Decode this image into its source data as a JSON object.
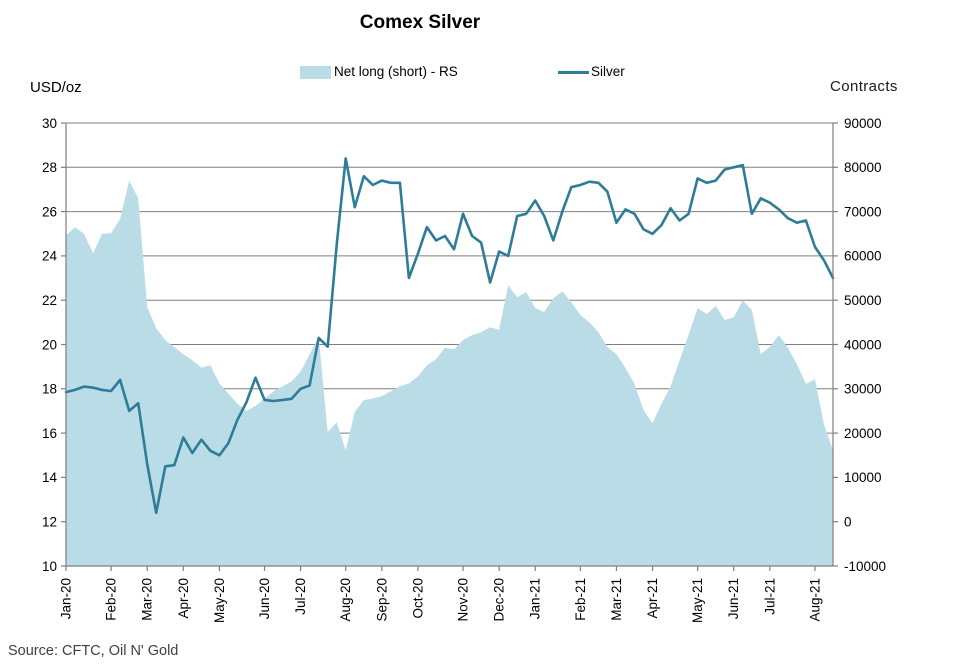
{
  "header": {
    "title": "Comex Silver"
  },
  "legend": [
    {
      "label": "Net long (short) - RS",
      "swatch": "area",
      "color": "#BADCE7"
    },
    {
      "label": "Silver",
      "swatch": "line",
      "color": "#2D7D98"
    }
  ],
  "axes": {
    "left_title": "USD/oz",
    "right_title": "Contracts"
  },
  "footer": {
    "source": "Source: CFTC, Oil N' Gold"
  },
  "colors": {
    "area": "#BADCE7",
    "line": "#2D7D98",
    "grid": "#7F7F7F",
    "axis": "#7F7F7F",
    "tick_text": "#000000",
    "source_text": "#404040"
  },
  "chart_data": {
    "type": "area",
    "subtype": "combo area (right axis) + line (left axis)",
    "title": "Comex Silver",
    "x_unit": "weekly observations, Jan-2020 to Aug-2021",
    "grid": "horizontal gridlines on",
    "legend_position": "top",
    "left_axis": {
      "label": "USD/oz",
      "min": 10,
      "max": 30,
      "step": 2
    },
    "right_axis": {
      "label": "Contracts",
      "min": 0,
      "max": 90000,
      "step": 10000
    },
    "x_ticks": [
      {
        "label": "Jan-20",
        "i": 0
      },
      {
        "label": "Feb-20",
        "i": 5
      },
      {
        "label": "Mar-20",
        "i": 9
      },
      {
        "label": "Apr-20",
        "i": 13
      },
      {
        "label": "May-20",
        "i": 17
      },
      {
        "label": "Jun-20",
        "i": 22
      },
      {
        "label": "Jul-20",
        "i": 26
      },
      {
        "label": "Aug-20",
        "i": 31
      },
      {
        "label": "Sep-20",
        "i": 35
      },
      {
        "label": "Oct-20",
        "i": 39
      },
      {
        "label": "Nov-20",
        "i": 44
      },
      {
        "label": "Dec-20",
        "i": 48
      },
      {
        "label": "Jan-21",
        "i": 52
      },
      {
        "label": "Feb-21",
        "i": 57
      },
      {
        "label": "Mar-21",
        "i": 61
      },
      {
        "label": "Apr-21",
        "i": 65
      },
      {
        "label": "May-21",
        "i": 70
      },
      {
        "label": "Jun-21",
        "i": 74
      },
      {
        "label": "Jul-21",
        "i": 78
      },
      {
        "label": "Aug-21",
        "i": 83
      }
    ],
    "series": [
      {
        "name": "Net long (short) - RS",
        "type": "area",
        "axis": "right",
        "color": "#BADCE7",
        "values": [
          67200,
          68800,
          67500,
          63500,
          67500,
          67600,
          70500,
          78300,
          74700,
          52600,
          48300,
          45900,
          44500,
          43000,
          41800,
          40300,
          40800,
          37100,
          35000,
          33000,
          31500,
          32500,
          34000,
          35500,
          36500,
          37500,
          39500,
          43000,
          46500,
          27200,
          29200,
          23500,
          31300,
          33700,
          34000,
          34500,
          35500,
          36500,
          37100,
          38500,
          40800,
          42000,
          44300,
          44000,
          45900,
          46900,
          47500,
          48500,
          48000,
          57000,
          54600,
          55600,
          52400,
          51600,
          54400,
          55800,
          53600,
          51000,
          49500,
          47500,
          44500,
          43000,
          40200,
          37000,
          31700,
          29000,
          33000,
          36500,
          41800,
          47000,
          52400,
          51200,
          52800,
          50000,
          50500,
          54000,
          52000,
          43000,
          44500,
          46900,
          44300,
          41000,
          37000,
          37900,
          28700,
          23500
        ]
      },
      {
        "name": "Silver",
        "type": "line",
        "axis": "left",
        "color": "#2D7D98",
        "values": [
          17.85,
          17.95,
          18.1,
          18.05,
          17.95,
          17.9,
          18.4,
          17.0,
          17.35,
          14.6,
          12.4,
          14.5,
          14.55,
          15.8,
          15.1,
          15.7,
          15.2,
          15.0,
          15.55,
          16.6,
          17.4,
          18.5,
          17.5,
          17.45,
          17.5,
          17.55,
          18.0,
          18.15,
          20.3,
          19.9,
          24.5,
          28.4,
          26.2,
          27.6,
          27.2,
          27.4,
          27.3,
          27.3,
          23.0,
          24.1,
          25.3,
          24.7,
          24.9,
          24.3,
          25.9,
          24.9,
          24.6,
          22.8,
          24.2,
          24.0,
          25.8,
          25.9,
          26.5,
          25.8,
          24.7,
          26.0,
          27.1,
          27.2,
          27.35,
          27.3,
          26.9,
          25.5,
          26.1,
          25.9,
          25.2,
          25.0,
          25.4,
          26.15,
          25.6,
          25.9,
          27.5,
          27.3,
          27.4,
          27.9,
          28.0,
          28.1,
          25.9,
          26.6,
          26.4,
          26.1,
          25.7,
          25.5,
          25.6,
          24.4,
          23.8,
          23.0
        ]
      }
    ],
    "source": "Source: CFTC, Oil N' Gold"
  }
}
